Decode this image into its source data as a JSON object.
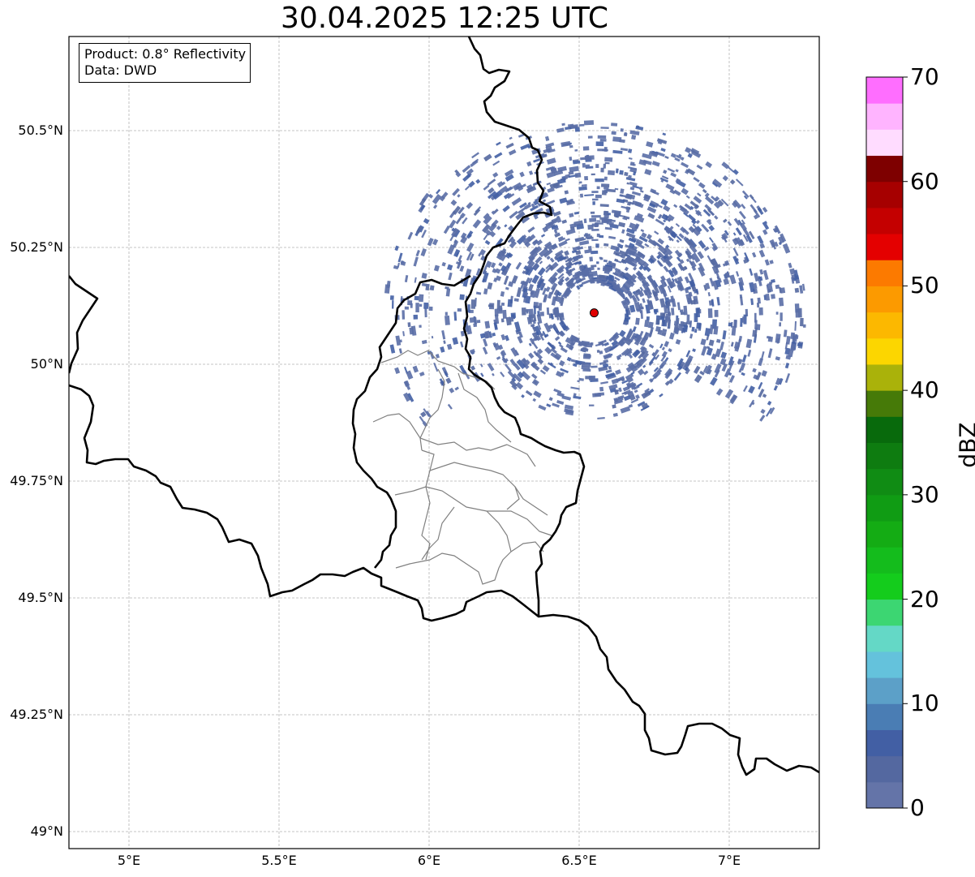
{
  "title": "30.04.2025 12:25 UTC",
  "info": {
    "product": "Product: 0.8° Reflectivity",
    "data_source": "Data: DWD"
  },
  "map": {
    "lon_range": [
      4.8,
      7.3
    ],
    "lat_range": [
      48.95,
      50.72
    ],
    "lat_ticks": [
      {
        "value": 50.5,
        "label": "50.5°N"
      },
      {
        "value": 50.25,
        "label": "50.25°N"
      },
      {
        "value": 50.0,
        "label": "50°N"
      },
      {
        "value": 49.75,
        "label": "49.75°N"
      },
      {
        "value": 49.5,
        "label": "49.5°N"
      },
      {
        "value": 49.25,
        "label": "49.25°N"
      },
      {
        "value": 49.0,
        "label": "49°N"
      }
    ],
    "lon_ticks": [
      {
        "value": 5.0,
        "label": "5°E"
      },
      {
        "value": 5.5,
        "label": "5.5°E"
      },
      {
        "value": 6.0,
        "label": "6°E"
      },
      {
        "value": 6.5,
        "label": "6.5°E"
      },
      {
        "value": 7.0,
        "label": "7°E"
      }
    ],
    "grid": true,
    "radar_site": {
      "lon": 6.55,
      "lat": 50.11,
      "color": "#e00000"
    }
  },
  "colorbar": {
    "label": "dBZ",
    "min": 0,
    "max": 70,
    "step": 2.5,
    "ticks": [
      "0",
      "10",
      "20",
      "30",
      "40",
      "50",
      "60",
      "70"
    ],
    "colors": [
      "#6474a8",
      "#5468a0",
      "#425fa4",
      "#4a7db4",
      "#5ca0c8",
      "#64c2dc",
      "#64d8c6",
      "#3cd672",
      "#14cc1c",
      "#14bc1c",
      "#14ac14",
      "#109c14",
      "#108c14",
      "#0e7c10",
      "#086a0c",
      "#467a08",
      "#aab20a",
      "#fcd600",
      "#fcb800",
      "#fc9a00",
      "#fc7a00",
      "#e40000",
      "#c40000",
      "#a60000",
      "#7e0000",
      "#ffdcff",
      "#ffb4ff",
      "#ff6eff",
      "#ea34ea"
    ]
  },
  "colors": {
    "echo_main": "#5a6ea6",
    "border_national": "#000000",
    "border_district": "#808080",
    "grid": "#b4b4b4"
  }
}
